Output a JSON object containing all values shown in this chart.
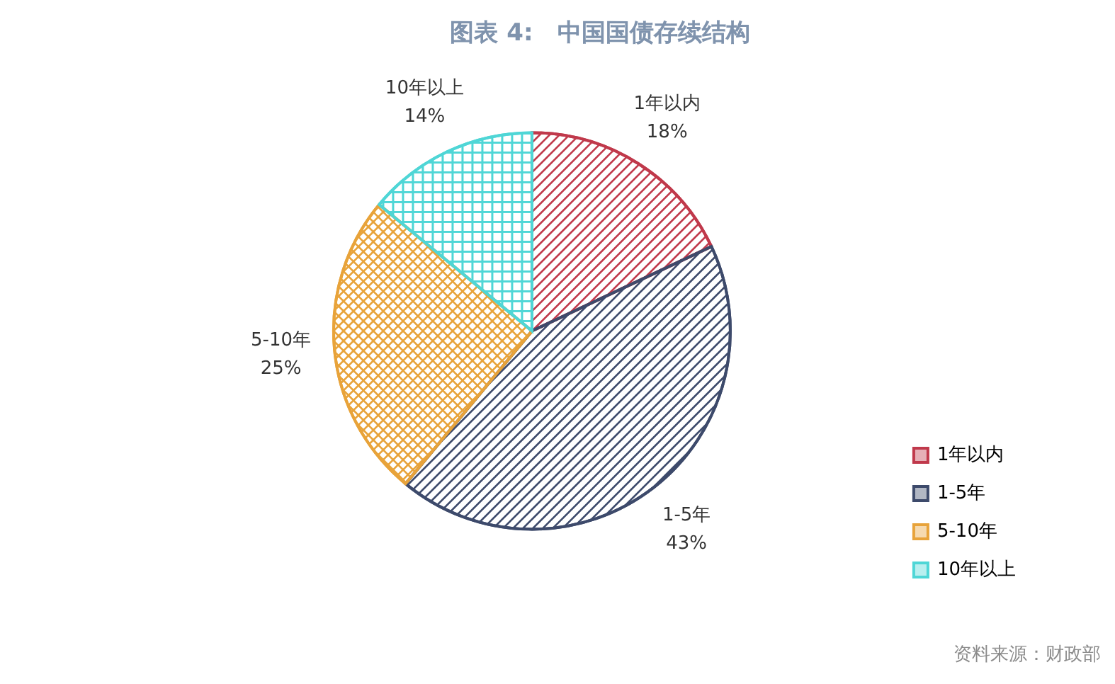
{
  "chart_data": {
    "type": "pie",
    "title": "图表 4:　中国国债存续结构",
    "categories": [
      "1年以内",
      "1-5年",
      "5-10年",
      "10年以上"
    ],
    "values": [
      18,
      43,
      25,
      14
    ],
    "colors": [
      "#c0394b",
      "#3d4a6b",
      "#e8a33a",
      "#4fd6d6"
    ],
    "value_labels": [
      "18%",
      "43%",
      "25%",
      "14%"
    ],
    "legend": "bottom right",
    "annotations": [
      "资料来源：财政部"
    ]
  }
}
